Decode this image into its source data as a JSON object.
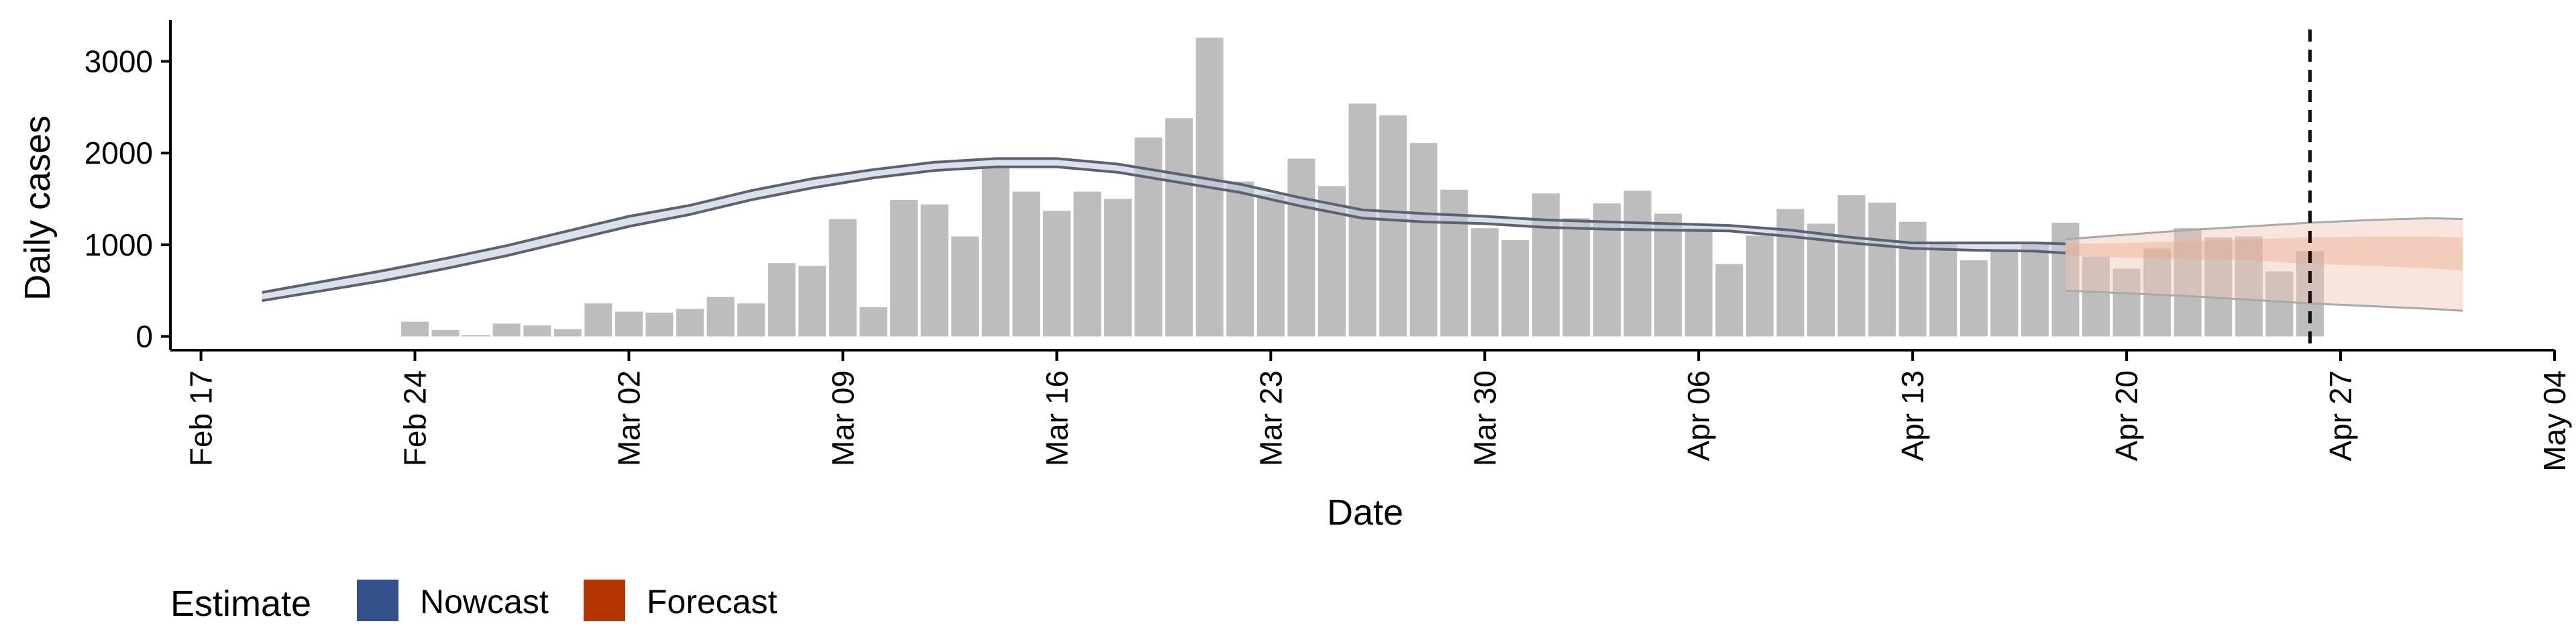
{
  "chart_data": {
    "type": "bar",
    "xlabel": "Date",
    "ylabel": "Daily cases",
    "x_range": [
      "2020-02-16",
      "2020-05-04"
    ],
    "ylim": [
      -150,
      3450
    ],
    "x_ticks": [
      {
        "date": "2020-02-17",
        "label": "Feb 17"
      },
      {
        "date": "2020-02-24",
        "label": "Feb 24"
      },
      {
        "date": "2020-03-02",
        "label": "Mar 02"
      },
      {
        "date": "2020-03-09",
        "label": "Mar 09"
      },
      {
        "date": "2020-03-16",
        "label": "Mar 16"
      },
      {
        "date": "2020-03-23",
        "label": "Mar 23"
      },
      {
        "date": "2020-03-30",
        "label": "Mar 30"
      },
      {
        "date": "2020-04-06",
        "label": "Apr 06"
      },
      {
        "date": "2020-04-13",
        "label": "Apr 13"
      },
      {
        "date": "2020-04-20",
        "label": "Apr 20"
      },
      {
        "date": "2020-04-27",
        "label": "Apr 27"
      },
      {
        "date": "2020-05-04",
        "label": "May 04"
      }
    ],
    "y_ticks": [
      0,
      1000,
      2000,
      3000
    ],
    "grid": false,
    "bar_color": "#bdbdbd",
    "bars": {
      "dates": [
        "2020-02-24",
        "2020-02-25",
        "2020-02-26",
        "2020-02-27",
        "2020-02-28",
        "2020-02-29",
        "2020-03-01",
        "2020-03-02",
        "2020-03-03",
        "2020-03-04",
        "2020-03-05",
        "2020-03-06",
        "2020-03-07",
        "2020-03-08",
        "2020-03-09",
        "2020-03-10",
        "2020-03-11",
        "2020-03-12",
        "2020-03-13",
        "2020-03-14",
        "2020-03-15",
        "2020-03-16",
        "2020-03-17",
        "2020-03-18",
        "2020-03-19",
        "2020-03-20",
        "2020-03-21",
        "2020-03-22",
        "2020-03-23",
        "2020-03-24",
        "2020-03-25",
        "2020-03-26",
        "2020-03-27",
        "2020-03-28",
        "2020-03-29",
        "2020-03-30",
        "2020-03-31",
        "2020-04-01",
        "2020-04-02",
        "2020-04-03",
        "2020-04-04",
        "2020-04-05",
        "2020-04-06",
        "2020-04-07",
        "2020-04-08",
        "2020-04-09",
        "2020-04-10",
        "2020-04-11",
        "2020-04-12",
        "2020-04-13",
        "2020-04-14",
        "2020-04-15",
        "2020-04-16",
        "2020-04-17",
        "2020-04-18",
        "2020-04-19",
        "2020-04-20",
        "2020-04-21",
        "2020-04-22",
        "2020-04-23",
        "2020-04-24",
        "2020-04-25",
        "2020-04-26"
      ],
      "values": [
        160,
        70,
        15,
        140,
        120,
        80,
        360,
        270,
        260,
        300,
        430,
        360,
        800,
        770,
        1280,
        320,
        1490,
        1440,
        1090,
        1860,
        1580,
        1370,
        1580,
        1500,
        2170,
        2380,
        3260,
        1690,
        1550,
        1940,
        1640,
        2540,
        2410,
        2110,
        1600,
        1180,
        1050,
        1560,
        1290,
        1450,
        1590,
        1340,
        1180,
        790,
        1100,
        1390,
        1230,
        1540,
        1460,
        1250,
        1020,
        830,
        950,
        1030,
        1240,
        870,
        740,
        960,
        1180,
        1080,
        1090,
        710,
        930
      ]
    },
    "series": [
      {
        "name": "Nowcast",
        "color": "#34508a",
        "dates": [
          "2020-02-19",
          "2020-02-21",
          "2020-02-23",
          "2020-02-25",
          "2020-02-27",
          "2020-02-29",
          "2020-03-02",
          "2020-03-04",
          "2020-03-06",
          "2020-03-08",
          "2020-03-10",
          "2020-03-12",
          "2020-03-14",
          "2020-03-16",
          "2020-03-18",
          "2020-03-20",
          "2020-03-22",
          "2020-03-24",
          "2020-03-26",
          "2020-03-28",
          "2020-03-30",
          "2020-04-01",
          "2020-04-03",
          "2020-04-05",
          "2020-04-07",
          "2020-04-09",
          "2020-04-11",
          "2020-04-13",
          "2020-04-15",
          "2020-04-17",
          "2020-04-18"
        ],
        "lower": [
          390,
          500,
          610,
          740,
          880,
          1040,
          1200,
          1330,
          1490,
          1620,
          1730,
          1810,
          1850,
          1850,
          1790,
          1680,
          1570,
          1420,
          1290,
          1250,
          1230,
          1190,
          1170,
          1160,
          1150,
          1090,
          1020,
          960,
          940,
          930,
          910
        ],
        "upper": [
          480,
          600,
          720,
          850,
          990,
          1150,
          1310,
          1430,
          1590,
          1720,
          1820,
          1900,
          1940,
          1940,
          1880,
          1770,
          1660,
          1510,
          1380,
          1340,
          1310,
          1270,
          1250,
          1230,
          1210,
          1160,
          1080,
          1020,
          1020,
          1020,
          1010
        ]
      },
      {
        "name": "Forecast",
        "color": "#b33500",
        "dates": [
          "2020-04-18",
          "2020-04-20",
          "2020-04-22",
          "2020-04-24",
          "2020-04-26",
          "2020-04-28",
          "2020-04-30",
          "2020-05-01"
        ],
        "lower": [
          500,
          470,
          440,
          400,
          360,
          330,
          300,
          280
        ],
        "lower50": [
          880,
          860,
          840,
          830,
          790,
          770,
          740,
          720
        ],
        "upper50": [
          1010,
          1020,
          1040,
          1060,
          1080,
          1090,
          1090,
          1080
        ],
        "upper": [
          1060,
          1110,
          1160,
          1200,
          1240,
          1270,
          1290,
          1280
        ]
      }
    ],
    "reference_line": {
      "date": "2020-04-26",
      "style": "dashed"
    },
    "legend": {
      "title": "Estimate",
      "position": "bottom-left",
      "entries": [
        "Nowcast",
        "Forecast"
      ]
    }
  }
}
